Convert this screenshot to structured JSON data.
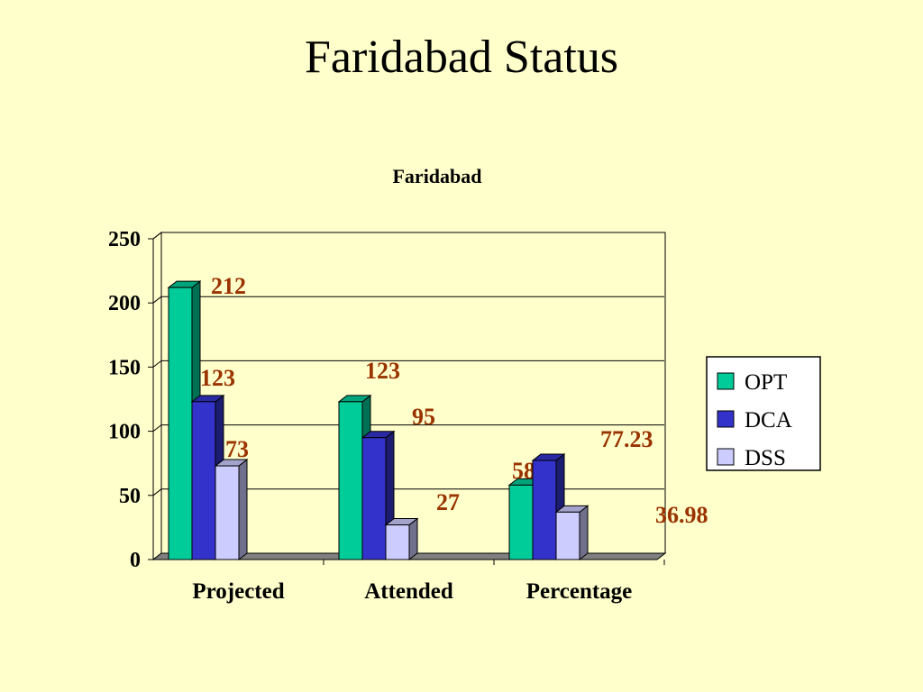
{
  "slide": {
    "title": "Faridabad Status"
  },
  "chart_data": {
    "type": "bar",
    "title": "Faridabad",
    "xlabel": "",
    "ylabel": "",
    "categories": [
      "Projected",
      "Attended",
      "Percentage"
    ],
    "series": [
      {
        "name": "OPT",
        "values": [
          212,
          123,
          58.01
        ],
        "color": "#00cc99",
        "labels": [
          "212",
          "123",
          "58.01"
        ]
      },
      {
        "name": "DCA",
        "values": [
          123,
          95,
          77.23
        ],
        "color": "#3333cc",
        "labels": [
          "123",
          "95",
          "77.23"
        ]
      },
      {
        "name": "DSS",
        "values": [
          73,
          27,
          36.98
        ],
        "color": "#ccccff",
        "labels": [
          "73",
          "27",
          "36.98"
        ]
      }
    ],
    "ylim": [
      0,
      250
    ],
    "yticks": [
      0,
      50,
      100,
      150,
      200,
      250
    ],
    "grid": true,
    "three_d": true,
    "legend_position": "right"
  }
}
